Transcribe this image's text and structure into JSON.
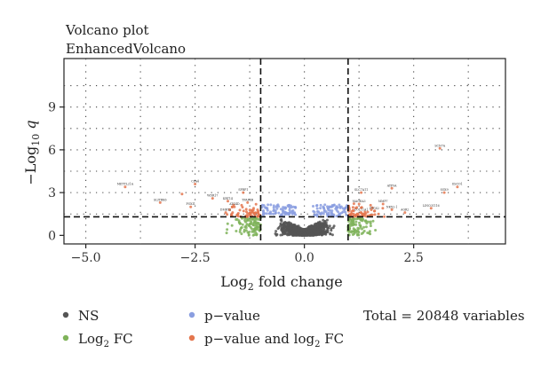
{
  "chart_data": {
    "type": "scatter",
    "title": "Volcano plot",
    "subtitle": "EnhancedVolcano",
    "xlabel_base": "Log",
    "xlabel_sub": "2",
    "xlabel_rest": " fold change",
    "ylabel_base": "−Log",
    "ylabel_sub": "10",
    "ylabel_var": " q",
    "xlim": [
      -5.5,
      4.6
    ],
    "ylim": [
      -0.6,
      12.4
    ],
    "xticks": [
      -5.0,
      -2.5,
      0.0,
      2.5
    ],
    "xtick_labels": [
      "−5.0",
      "−2.5",
      "0.0",
      "2.5"
    ],
    "yticks": [
      0,
      3,
      6,
      9
    ],
    "ytick_labels": [
      "0",
      "3",
      "6",
      "9"
    ],
    "fc_cutoff": 1.0,
    "q_cutoff_log": 1.3,
    "grid": "dotted",
    "legend_position": "bottom",
    "legend": [
      {
        "key": "ns",
        "label": "NS",
        "color": "#555555"
      },
      {
        "key": "fc",
        "label_base": "Log",
        "label_sub": "2",
        "label_rest": " FC",
        "color": "#7fb35a"
      },
      {
        "key": "p",
        "label": "p−value",
        "color": "#8a9ee0"
      },
      {
        "key": "pfc",
        "label_base": "p−value and log",
        "label_sub": "2",
        "label_rest": " FC",
        "color": "#e4764e"
      }
    ],
    "caption": "Total = 20848 variables",
    "series": [
      {
        "name": "NS",
        "color": "#555555"
      },
      {
        "name": "Log2 FC",
        "color": "#7fb35a"
      },
      {
        "name": "p−value",
        "color": "#8a9ee0"
      },
      {
        "name": "p−value and log2 FC",
        "color": "#e4764e"
      }
    ],
    "labeled_points": [
      {
        "x": -4.1,
        "y": 3.4,
        "label": "METTL21A"
      },
      {
        "x": -3.3,
        "y": 2.3,
        "label": "SLITRK6"
      },
      {
        "x": -2.5,
        "y": 3.6,
        "label": "CPA4"
      },
      {
        "x": -2.8,
        "y": 2.9,
        "label": ""
      },
      {
        "x": -2.6,
        "y": 2.0,
        "label": "FOXI1"
      },
      {
        "x": -2.1,
        "y": 2.6,
        "label": "WDR17"
      },
      {
        "x": -1.75,
        "y": 2.4,
        "label": "KRT14"
      },
      {
        "x": -1.6,
        "y": 2.0,
        "label": "ATG4D"
      },
      {
        "x": -1.4,
        "y": 3.0,
        "label": "SFRP1"
      },
      {
        "x": -1.8,
        "y": 1.6,
        "label": "DMRT2"
      },
      {
        "x": -1.3,
        "y": 2.3,
        "label": "TFAP2B"
      },
      {
        "x": 1.3,
        "y": 3.0,
        "label": "SLC7A11"
      },
      {
        "x": 1.25,
        "y": 2.2,
        "label": "MAGEA3"
      },
      {
        "x": 1.3,
        "y": 1.6,
        "label": "COL11A1"
      },
      {
        "x": 2.0,
        "y": 3.3,
        "label": "ATP9A"
      },
      {
        "x": 1.8,
        "y": 2.2,
        "label": "MMP7"
      },
      {
        "x": 2.0,
        "y": 1.8,
        "label": "NKX2-1"
      },
      {
        "x": 2.3,
        "y": 1.6,
        "label": "AGR2"
      },
      {
        "x": 1.6,
        "y": 1.7,
        "label": "PTGS2"
      },
      {
        "x": 3.1,
        "y": 6.1,
        "label": "SCN7A"
      },
      {
        "x": 3.2,
        "y": 3.0,
        "label": "SOX9"
      },
      {
        "x": 3.5,
        "y": 3.4,
        "label": "ESCO1"
      },
      {
        "x": 2.9,
        "y": 1.9,
        "label": "LINC01116"
      }
    ]
  }
}
